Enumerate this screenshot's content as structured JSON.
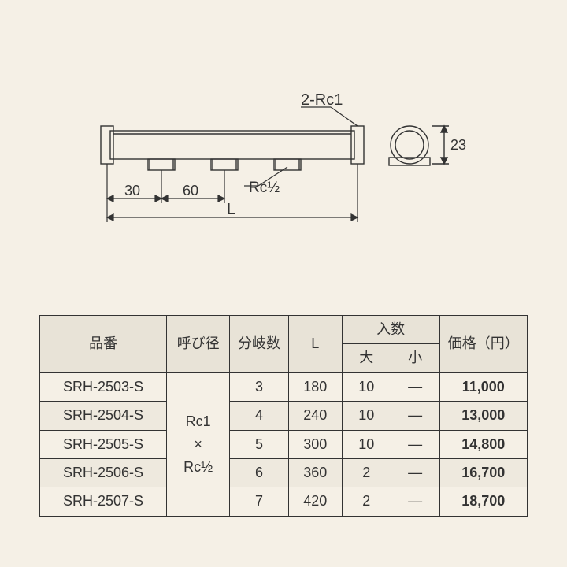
{
  "diagram": {
    "label_top": "2-Rc1",
    "label_rc_half": "Rc½",
    "dim_30": "30",
    "dim_60": "60",
    "dim_L": "L",
    "dim_23": "23",
    "stroke": "#333333",
    "stroke_width": 1.4,
    "bg": "#f5f0e6"
  },
  "table": {
    "headers": {
      "part_no": "品番",
      "nominal": "呼び径",
      "branches": "分岐数",
      "L": "L",
      "qty": "入数",
      "qty_big": "大",
      "qty_small": "小",
      "price": "価格（円）"
    },
    "nominal_merged": "Rc1\n×\nRc½",
    "rows": [
      {
        "pn": "SRH-2503-S",
        "br": "3",
        "L": "180",
        "big": "10",
        "small": "—",
        "price": "11,000"
      },
      {
        "pn": "SRH-2504-S",
        "br": "4",
        "L": "240",
        "big": "10",
        "small": "—",
        "price": "13,000"
      },
      {
        "pn": "SRH-2505-S",
        "br": "5",
        "L": "300",
        "big": "10",
        "small": "—",
        "price": "14,800"
      },
      {
        "pn": "SRH-2506-S",
        "br": "6",
        "L": "360",
        "big": "2",
        "small": "—",
        "price": "16,700"
      },
      {
        "pn": "SRH-2507-S",
        "br": "7",
        "L": "420",
        "big": "2",
        "small": "—",
        "price": "18,700"
      }
    ],
    "header_bg": "#e8e3d7",
    "shade_bg": "#eee9de",
    "border": "#333333",
    "fontsize": 18
  }
}
